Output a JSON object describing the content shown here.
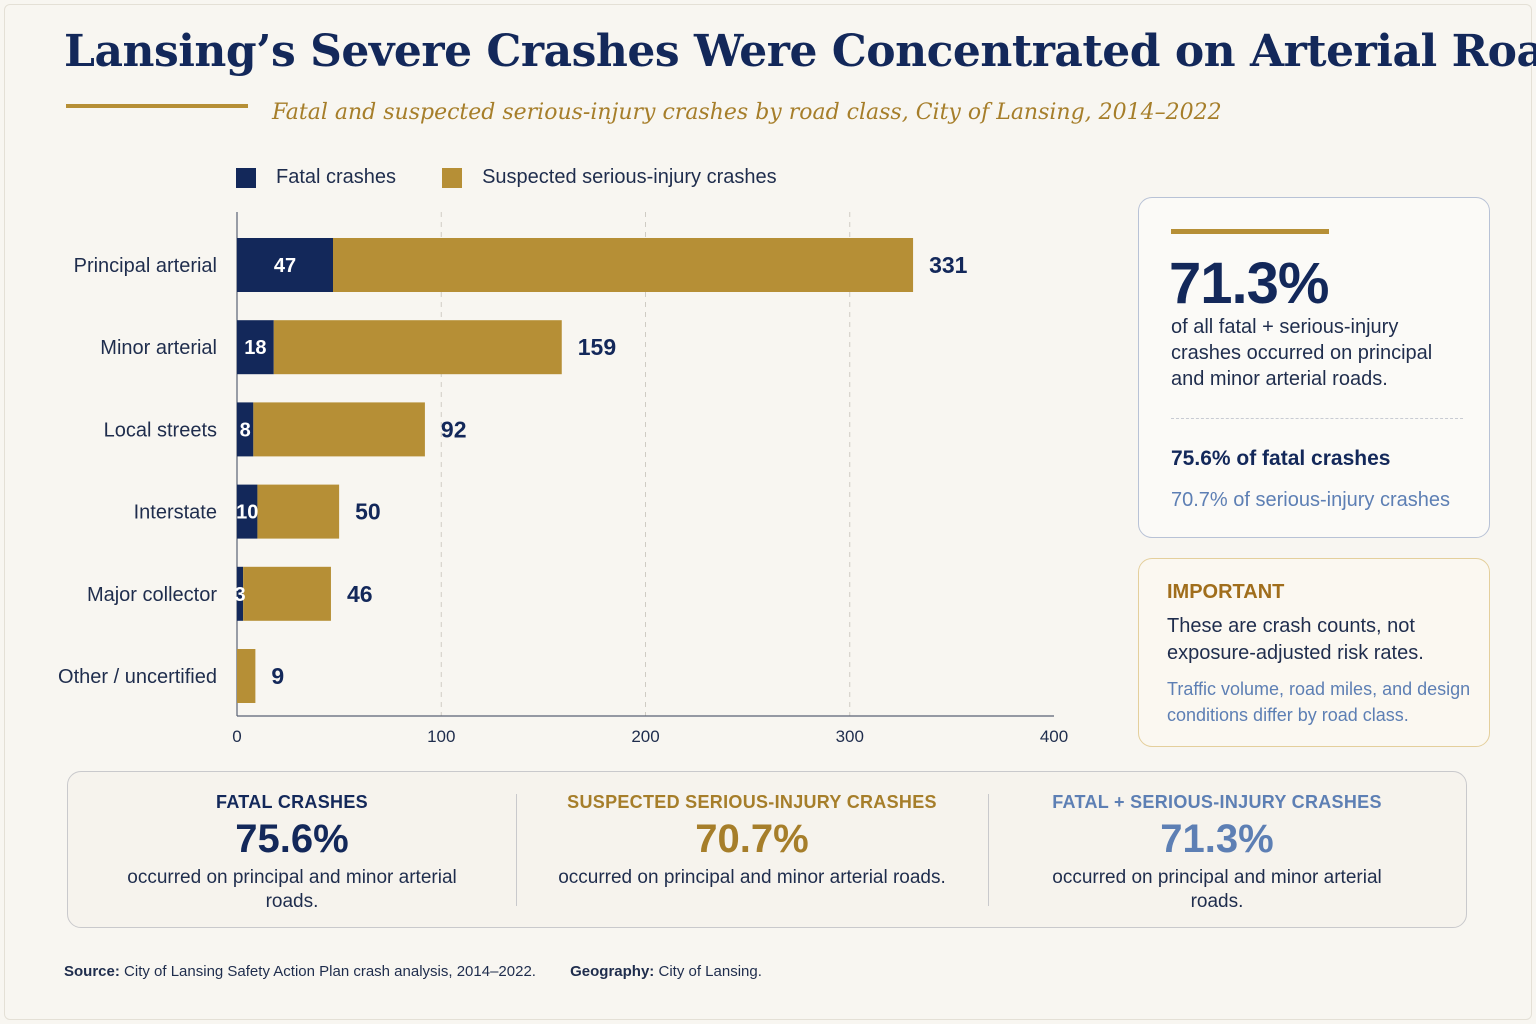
{
  "title": "Lansing’s Severe Crashes Were Concentrated on Arterial Roads",
  "subtitle": "Fatal and suspected serious-injury crashes by road class, City of Lansing, 2014–2022",
  "colors": {
    "fatal": "#13285a",
    "serious": "#b68f36",
    "accent_blue": "#5d7fb4",
    "accent_gold": "#a67e2a"
  },
  "chart_data": {
    "type": "bar",
    "orientation": "horizontal",
    "stacked": true,
    "categories": [
      "Principal arterial",
      "Minor arterial",
      "Local streets",
      "Interstate",
      "Major collector",
      "Other / uncertified"
    ],
    "series": [
      {
        "name": "Fatal crashes",
        "values": [
          47,
          18,
          8,
          10,
          3,
          0
        ]
      },
      {
        "name": "Suspected serious-injury crashes",
        "values": [
          284,
          141,
          84,
          40,
          43,
          9
        ]
      }
    ],
    "totals": [
      331,
      159,
      92,
      50,
      46,
      9
    ],
    "fatal_labels": [
      "47",
      "18",
      "8",
      "10",
      "3",
      ""
    ],
    "total_labels": [
      "331",
      "159",
      "92",
      "50",
      "46",
      "9"
    ],
    "xticks": [
      "0",
      "100",
      "200",
      "300",
      "400"
    ],
    "xlim": [
      0,
      400
    ],
    "grid": "vertical dashed",
    "legend": "top-left"
  },
  "main_card": {
    "big_value": "71.3%",
    "description": "of all fatal + serious-injury crashes occurred on principal and minor arterial roads.",
    "fatal_line": "75.6% of fatal crashes",
    "serious_line": "70.7% of serious-injury crashes"
  },
  "note_card": {
    "heading": "IMPORTANT",
    "main": "These are crash counts, not exposure-adjusted risk rates.",
    "sub": "Traffic volume, road miles, and design conditions differ by road class."
  },
  "summary": [
    {
      "heading": "FATAL CRASHES",
      "value": "75.6%",
      "description": "occurred on principal and minor arterial roads.",
      "color": "#13285a"
    },
    {
      "heading": "SUSPECTED SERIOUS-INJURY CRASHES",
      "value": "70.7%",
      "description": "occurred on principal and minor arterial roads.",
      "color": "#a67e2a"
    },
    {
      "heading": "FATAL + SERIOUS-INJURY CRASHES",
      "value": "71.3%",
      "description": "occurred on principal and minor arterial roads.",
      "color": "#5d7fb4"
    }
  ],
  "footer": {
    "source_label": "Source:",
    "source_text": "City of Lansing Safety Action Plan crash analysis, 2014–2022.",
    "geography_label": "Geography:",
    "geography_text": "City of Lansing."
  }
}
